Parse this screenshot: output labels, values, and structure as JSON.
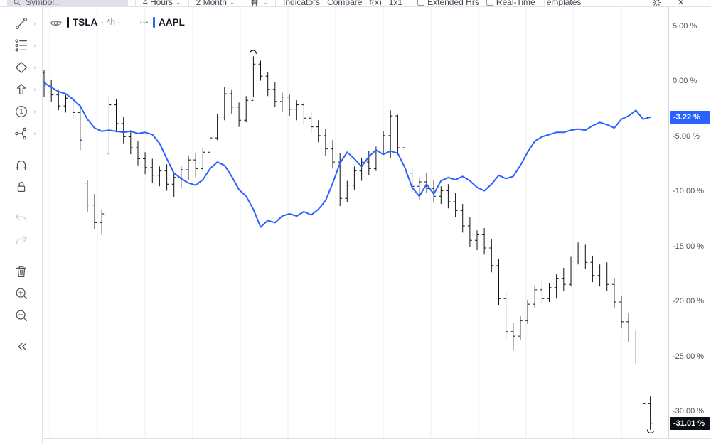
{
  "topbar": {
    "symbol_placeholder": "Symbol...",
    "interval_label": "4 Hours",
    "range_label": "2 Month",
    "indicators_label": "Indicators",
    "compare_label": "Compare",
    "fx_label": "f(x)",
    "grid_label": "1x1",
    "extended_hours_label": "Extended Hrs",
    "realtime_label": "Real-Time",
    "templates_label": "Templates"
  },
  "sidebar": {
    "tools": [
      {
        "name": "trend-line-tool",
        "icon": "trend-line",
        "has_submenu": true
      },
      {
        "name": "fib-retracement-tool",
        "icon": "fib",
        "has_submenu": true
      },
      {
        "name": "pattern-tool",
        "icon": "diamond",
        "has_submenu": true
      },
      {
        "name": "arrow-marker-tool",
        "icon": "arrow-up",
        "has_submenu": true
      },
      {
        "name": "annotation-count-tool",
        "icon": "circle-one",
        "has_submenu": true
      },
      {
        "name": "measure-projection-tool",
        "icon": "calipers",
        "has_submenu": true
      },
      {
        "name": "magnet-tool",
        "icon": "magnet",
        "gap_before": true
      },
      {
        "name": "lock-all-drawings-tool",
        "icon": "lock"
      },
      {
        "name": "undo-button",
        "icon": "undo",
        "disabled": true,
        "gap_before": true
      },
      {
        "name": "redo-button",
        "icon": "redo",
        "disabled": true
      },
      {
        "name": "remove-drawings-button",
        "icon": "trash",
        "gap_before": true
      },
      {
        "name": "zoom-in-button",
        "icon": "zoom-in"
      },
      {
        "name": "zoom-out-button",
        "icon": "zoom-out"
      },
      {
        "name": "collapse-toolbar-button",
        "icon": "collapse",
        "gap_before": true
      }
    ]
  },
  "legend": {
    "items": [
      {
        "symbol": "TSLA",
        "interval": "· 4h ·",
        "color": "#111111"
      },
      {
        "symbol": "AAPL",
        "interval": "",
        "color": "#2962ff"
      }
    ]
  },
  "price_axis": {
    "ticks": [
      {
        "label": "5.00 %",
        "value": 5
      },
      {
        "label": "0.00 %",
        "value": 0
      },
      {
        "label": "-5.00 %",
        "value": -5
      },
      {
        "label": "-10.00 %",
        "value": -10
      },
      {
        "label": "-15.00 %",
        "value": -15
      },
      {
        "label": "-20.00 %",
        "value": -20
      },
      {
        "label": "-25.00 %",
        "value": -25
      },
      {
        "label": "-30.00 %",
        "value": -30
      }
    ],
    "badges": [
      {
        "name": "aapl-last-value-badge",
        "label": "-3.22 %",
        "value": -3.22,
        "color": "#2962ff"
      },
      {
        "name": "tsla-last-value-badge",
        "label": "-31.01 %",
        "value": -31.01,
        "color": "#0c0e15"
      }
    ]
  },
  "chart_data": {
    "type": "mixed",
    "unit": "percent_change",
    "grid": "vertical-only",
    "ylim": [
      -32.6,
      6.9
    ],
    "y_ticks": [
      5,
      0,
      -5,
      -10,
      -15,
      -20,
      -25,
      -30
    ],
    "series": [
      {
        "name": "TSLA",
        "style": "ohlc_bars",
        "color": "#111111",
        "last_value": -31.01,
        "bars": [
          [
            0.8,
            1.1,
            -1.4,
            -0.3
          ],
          [
            -0.3,
            0.2,
            -1.8,
            -1.2
          ],
          [
            -1.2,
            -0.8,
            -2.6,
            -2.2
          ],
          [
            -2.2,
            -1.2,
            -2.8,
            -1.5
          ],
          [
            -1.5,
            -1.3,
            -3.4,
            -2.8
          ],
          [
            -2.8,
            -2.4,
            -6.2,
            -5.3
          ],
          [
            -9.2,
            -8.9,
            -11.8,
            -11.2
          ],
          [
            -11.2,
            -10.2,
            -13.4,
            -12.8
          ],
          [
            -12.8,
            -11.6,
            -13.9,
            -12.0
          ],
          [
            -6.5,
            -1.4,
            -6.7,
            -2.1
          ],
          [
            -2.1,
            -1.6,
            -4.6,
            -3.8
          ],
          [
            -3.8,
            -3.2,
            -5.6,
            -5.0
          ],
          [
            -5.0,
            -4.4,
            -6.6,
            -6.0
          ],
          [
            -6.0,
            -5.4,
            -7.6,
            -7.0
          ],
          [
            -7.0,
            -6.4,
            -8.4,
            -7.8
          ],
          [
            -7.8,
            -7.0,
            -9.2,
            -8.5
          ],
          [
            -8.5,
            -7.7,
            -9.5,
            -8.1
          ],
          [
            -8.1,
            -7.5,
            -9.9,
            -9.3
          ],
          [
            -9.3,
            -8.3,
            -10.5,
            -8.7
          ],
          [
            -8.7,
            -7.7,
            -9.7,
            -8.0
          ],
          [
            -8.0,
            -6.7,
            -8.9,
            -7.1
          ],
          [
            -7.1,
            -6.5,
            -8.7,
            -7.9
          ],
          [
            -7.9,
            -6.0,
            -8.1,
            -6.4
          ],
          [
            -6.4,
            -4.7,
            -6.7,
            -5.1
          ],
          [
            -5.1,
            -2.9,
            -5.3,
            -3.2
          ],
          [
            -3.2,
            -0.5,
            -3.5,
            -1.1
          ],
          [
            -1.1,
            -0.7,
            -2.9,
            -2.3
          ],
          [
            -2.3,
            -1.9,
            -4.1,
            -3.5
          ],
          [
            -3.5,
            -1.3,
            -3.7,
            -1.7
          ],
          [
            -1.7,
            2.3,
            -1.4,
            1.6
          ],
          [
            1.6,
            1.9,
            0.1,
            0.5
          ],
          [
            0.5,
            0.9,
            -1.3,
            -0.7
          ],
          [
            -0.7,
            0.0,
            -2.3,
            -1.8
          ],
          [
            -1.8,
            -1.0,
            -2.7,
            -1.4
          ],
          [
            -1.4,
            -1.1,
            -3.1,
            -2.5
          ],
          [
            -2.5,
            -1.7,
            -3.5,
            -2.1
          ],
          [
            -2.1,
            -1.9,
            -3.9,
            -3.3
          ],
          [
            -3.3,
            -2.7,
            -4.7,
            -4.1
          ],
          [
            -4.1,
            -3.5,
            -5.5,
            -4.9
          ],
          [
            -4.9,
            -4.3,
            -6.7,
            -6.1
          ],
          [
            -6.1,
            -5.3,
            -7.9,
            -7.3
          ],
          [
            -7.3,
            -6.5,
            -11.3,
            -10.6
          ],
          [
            -10.6,
            -9.0,
            -10.9,
            -9.4
          ],
          [
            -9.4,
            -7.7,
            -9.8,
            -8.1
          ],
          [
            -8.1,
            -6.9,
            -9.0,
            -7.3
          ],
          [
            -7.3,
            -6.3,
            -8.5,
            -7.9
          ],
          [
            -7.9,
            -5.9,
            -8.1,
            -6.3
          ],
          [
            -6.3,
            -4.5,
            -6.6,
            -4.9
          ],
          [
            -4.9,
            -2.6,
            -6.9,
            -3.1
          ],
          [
            -3.1,
            -3.0,
            -6.5,
            -6.0
          ],
          [
            -6.0,
            -5.7,
            -8.7,
            -8.3
          ],
          [
            -8.3,
            -7.9,
            -10.0,
            -9.5
          ],
          [
            -9.5,
            -8.7,
            -10.7,
            -9.1
          ],
          [
            -9.1,
            -8.3,
            -10.1,
            -9.7
          ],
          [
            -9.7,
            -8.9,
            -11.0,
            -10.4
          ],
          [
            -10.4,
            -9.5,
            -11.1,
            -9.9
          ],
          [
            -9.9,
            -9.3,
            -11.5,
            -10.9
          ],
          [
            -10.9,
            -10.1,
            -12.3,
            -11.7
          ],
          [
            -11.7,
            -11.1,
            -13.7,
            -13.1
          ],
          [
            -13.1,
            -12.3,
            -15.0,
            -14.4
          ],
          [
            -14.4,
            -13.5,
            -15.3,
            -13.9
          ],
          [
            -13.9,
            -13.3,
            -15.7,
            -15.1
          ],
          [
            -15.1,
            -14.3,
            -17.3,
            -16.7
          ],
          [
            -16.7,
            -16.1,
            -20.3,
            -19.7
          ],
          [
            -19.7,
            -19.2,
            -23.3,
            -22.7
          ],
          [
            -22.7,
            -21.9,
            -24.4,
            -23.1
          ],
          [
            -23.1,
            -21.3,
            -23.4,
            -21.7
          ],
          [
            -21.7,
            -19.8,
            -22.0,
            -20.2
          ],
          [
            -20.2,
            -18.5,
            -20.5,
            -18.9
          ],
          [
            -18.9,
            -18.1,
            -20.3,
            -19.7
          ],
          [
            -19.7,
            -18.3,
            -20.0,
            -18.7
          ],
          [
            -18.7,
            -17.5,
            -19.7,
            -17.9
          ],
          [
            -17.9,
            -16.9,
            -19.0,
            -18.4
          ],
          [
            -18.4,
            -15.9,
            -18.6,
            -16.3
          ],
          [
            -16.3,
            -14.6,
            -16.6,
            -15.0
          ],
          [
            -15.0,
            -14.8,
            -17.0,
            -16.4
          ],
          [
            -16.4,
            -15.8,
            -18.2,
            -17.6
          ],
          [
            -17.6,
            -16.6,
            -18.6,
            -17.0
          ],
          [
            -17.0,
            -16.4,
            -19.0,
            -18.4
          ],
          [
            -18.4,
            -17.8,
            -20.6,
            -20.0
          ],
          [
            -20.0,
            -19.4,
            -22.4,
            -21.8
          ],
          [
            -21.8,
            -21.0,
            -23.6,
            -23.0
          ],
          [
            -23.0,
            -22.6,
            -25.6,
            -25.0
          ],
          [
            -25.0,
            -24.7,
            -29.8,
            -29.2
          ],
          [
            -29.2,
            -28.6,
            -31.6,
            -31.01
          ]
        ]
      },
      {
        "name": "AAPL",
        "style": "line",
        "color": "#2962ff",
        "last_value": -3.22,
        "values": [
          -0.1,
          -0.5,
          -0.9,
          -1.1,
          -1.6,
          -2.2,
          -3.4,
          -4.2,
          -4.5,
          -4.4,
          -4.5,
          -4.6,
          -4.5,
          -4.7,
          -4.6,
          -4.8,
          -5.6,
          -7.0,
          -8.3,
          -8.8,
          -9.2,
          -9.4,
          -8.9,
          -7.9,
          -7.3,
          -7.6,
          -8.6,
          -9.8,
          -10.4,
          -11.6,
          -13.2,
          -12.6,
          -12.8,
          -12.2,
          -12.0,
          -12.2,
          -11.8,
          -12.1,
          -11.6,
          -10.8,
          -9.2,
          -7.4,
          -6.4,
          -7.0,
          -7.7,
          -6.8,
          -6.2,
          -6.6,
          -6.3,
          -6.5,
          -7.8,
          -9.6,
          -10.4,
          -9.3,
          -10.2,
          -9.0,
          -8.7,
          -8.9,
          -8.6,
          -9.0,
          -9.6,
          -9.9,
          -9.3,
          -8.5,
          -8.8,
          -8.6,
          -7.6,
          -6.4,
          -5.4,
          -5.0,
          -4.8,
          -4.6,
          -4.6,
          -4.4,
          -4.3,
          -4.4,
          -4.0,
          -3.7,
          -3.9,
          -4.2,
          -3.4,
          -3.1,
          -2.6,
          -3.4,
          -3.22
        ]
      }
    ]
  }
}
